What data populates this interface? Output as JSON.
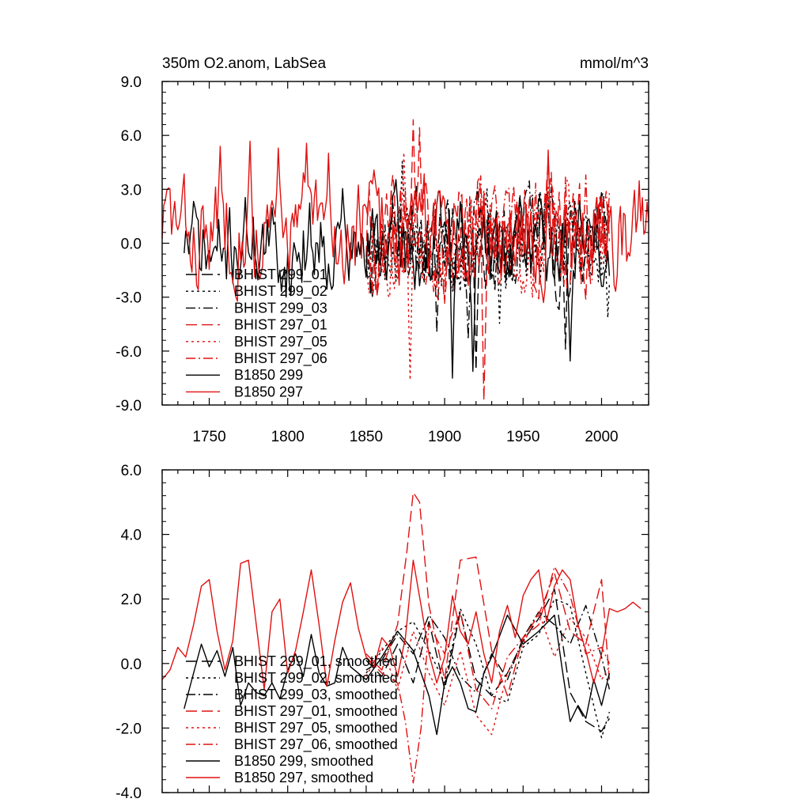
{
  "chart_data": [
    {
      "type": "line",
      "title": "350m O2.anom, LabSea",
      "units": "mmol/m^3",
      "xlim": [
        1720,
        2030
      ],
      "ylim": [
        -9,
        9
      ],
      "xticks": [
        1750,
        1800,
        1850,
        1900,
        1950,
        2000
      ],
      "xtick_labels": [
        "1750",
        "1800",
        "1850",
        "1900",
        "1950",
        "2000"
      ],
      "yticks": [
        -9,
        -6,
        -3,
        0,
        3,
        6,
        9
      ],
      "ytick_labels": [
        "-9.0",
        "-6.0",
        "-3.0",
        "0.0",
        "3.0",
        "6.0",
        "9.0"
      ],
      "legend_position": "lower-left",
      "series": [
        {
          "name": "BHIST 299_01",
          "color": "#000000",
          "dash": "longdash",
          "start": 1850,
          "end": 2005,
          "amp": 1.6,
          "seed": 11,
          "bias": 0.2,
          "spikes": [
            [
              1895,
              -4.8
            ],
            [
              1920,
              -6.9
            ],
            [
              1977,
              -5.7
            ]
          ]
        },
        {
          "name": "BHIST 299_02",
          "color": "#000000",
          "dash": "dotted",
          "start": 1850,
          "end": 2005,
          "amp": 1.5,
          "seed": 23,
          "bias": 0.0,
          "spikes": [
            [
              1873,
              3.8
            ],
            [
              1935,
              -4.5
            ],
            [
              2004,
              -4.6
            ]
          ]
        },
        {
          "name": "BHIST 299_03",
          "color": "#000000",
          "dash": "dashdot",
          "start": 1850,
          "end": 2005,
          "amp": 1.5,
          "seed": 37,
          "bias": 0.3,
          "spikes": [
            [
              1915,
              -5.5
            ],
            [
              1968,
              3.2
            ]
          ]
        },
        {
          "name": "BHIST 297_01",
          "color": "#e01010",
          "dash": "longdash",
          "start": 1850,
          "end": 2005,
          "amp": 1.8,
          "seed": 41,
          "bias": 0.5,
          "spikes": [
            [
              1880,
              6.7
            ],
            [
              1884,
              6.5
            ],
            [
              1925,
              -8.6
            ]
          ]
        },
        {
          "name": "BHIST 297_05",
          "color": "#e01010",
          "dash": "dotted",
          "start": 1850,
          "end": 2005,
          "amp": 1.7,
          "seed": 53,
          "bias": 0.2,
          "spikes": [
            [
              1878,
              -7.5
            ],
            [
              1874,
              5.6
            ]
          ]
        },
        {
          "name": "BHIST 297_06",
          "color": "#e01010",
          "dash": "dashdot",
          "start": 1850,
          "end": 2005,
          "amp": 1.7,
          "seed": 67,
          "bias": 0.6,
          "spikes": [
            [
              1977,
              4.0
            ],
            [
              1990,
              4.3
            ]
          ]
        },
        {
          "name": "B1850 299",
          "color": "#000000",
          "dash": "solid",
          "start": 1734,
          "end": 2005,
          "amp": 1.5,
          "seed": 71,
          "bias": -0.2,
          "spikes": [
            [
              1835,
              3.3
            ],
            [
              1905,
              -7.1
            ],
            [
              1918,
              -6.9
            ],
            [
              1980,
              -5.7
            ]
          ]
        },
        {
          "name": "B1850 297",
          "color": "#e01010",
          "dash": "solid",
          "start": 1720,
          "end": 2030,
          "amp": 1.7,
          "seed": 83,
          "bias": 0.7,
          "spikes": [
            [
              1757,
              5.1
            ],
            [
              1776,
              5.2
            ],
            [
              1794,
              5.1
            ],
            [
              1812,
              5.0
            ],
            [
              1826,
              4.4
            ],
            [
              1966,
              5.1
            ]
          ]
        }
      ]
    },
    {
      "type": "line",
      "title": "",
      "xlim": [
        1720,
        2030
      ],
      "ylim": [
        -4,
        6
      ],
      "xticks": [
        1750,
        1800,
        1850,
        1900,
        1950,
        2000
      ],
      "yticks": [
        -4,
        -2,
        0,
        2,
        4,
        6
      ],
      "ytick_labels": [
        "-4.0",
        "-2.0",
        "0.0",
        "2.0",
        "4.0",
        "6.0"
      ],
      "legend_position": "lower-left",
      "series": [
        {
          "name": "BHIST 299_01, smoothed",
          "color": "#000000",
          "dash": "longdash",
          "x": [
            1850,
            1860,
            1870,
            1880,
            1890,
            1900,
            1910,
            1920,
            1930,
            1940,
            1950,
            1960,
            1970,
            1980,
            1990,
            2000,
            2005
          ],
          "y": [
            0.1,
            -0.4,
            0.6,
            -0.6,
            1.3,
            -0.8,
            1.6,
            -0.5,
            -1.0,
            -0.3,
            0.7,
            1.4,
            2.3,
            -0.9,
            -1.8,
            -2.1,
            -1.7
          ]
        },
        {
          "name": "BHIST 299_02, smoothed",
          "color": "#000000",
          "dash": "dotted",
          "x": [
            1850,
            1860,
            1870,
            1880,
            1890,
            1900,
            1910,
            1920,
            1930,
            1940,
            1950,
            1960,
            1970,
            1980,
            1990,
            2000,
            2005
          ],
          "y": [
            -0.3,
            0.4,
            1.0,
            1.3,
            0.4,
            -0.6,
            1.7,
            0.6,
            -1.0,
            -1.2,
            0.5,
            0.9,
            2.0,
            1.8,
            -0.3,
            -2.3,
            -1.5
          ]
        },
        {
          "name": "BHIST 299_03, smoothed",
          "color": "#000000",
          "dash": "dashdot",
          "x": [
            1850,
            1860,
            1870,
            1880,
            1890,
            1900,
            1910,
            1920,
            1930,
            1940,
            1950,
            1960,
            1970,
            1980,
            1990,
            2000,
            2005
          ],
          "y": [
            -0.2,
            0.1,
            0.9,
            0.3,
            1.5,
            0.8,
            -0.4,
            -0.9,
            0.3,
            -0.5,
            0.8,
            1.6,
            1.2,
            0.6,
            1.8,
            0.2,
            -0.8
          ]
        },
        {
          "name": "BHIST 297_01, smoothed",
          "color": "#e01010",
          "dash": "longdash",
          "x": [
            1850,
            1860,
            1870,
            1876,
            1880,
            1884,
            1890,
            1900,
            1910,
            1920,
            1930,
            1940,
            1950,
            1960,
            1970,
            1980,
            1990,
            2000,
            2005
          ],
          "y": [
            0.3,
            -0.2,
            1.2,
            3.5,
            5.3,
            5.0,
            1.8,
            -0.5,
            3.2,
            3.3,
            0.4,
            -1.0,
            0.8,
            1.5,
            2.8,
            1.0,
            0.6,
            2.6,
            -0.5
          ]
        },
        {
          "name": "BHIST 297_05, smoothed",
          "color": "#e01010",
          "dash": "dotted",
          "x": [
            1850,
            1860,
            1870,
            1880,
            1890,
            1900,
            1910,
            1920,
            1930,
            1940,
            1950,
            1960,
            1970,
            1980,
            1990,
            2000,
            2005
          ],
          "y": [
            -0.4,
            0.5,
            -0.8,
            1.0,
            -0.3,
            -1.3,
            0.4,
            -1.6,
            -2.2,
            -0.3,
            0.6,
            1.6,
            0.2,
            1.4,
            0.8,
            -0.5,
            -0.1
          ]
        },
        {
          "name": "BHIST 297_06, smoothed",
          "color": "#e01010",
          "dash": "dashdot",
          "x": [
            1850,
            1860,
            1870,
            1875,
            1880,
            1885,
            1890,
            1900,
            1910,
            1920,
            1930,
            1940,
            1950,
            1960,
            1970,
            1980,
            1990,
            2000,
            2005
          ],
          "y": [
            0.2,
            -0.3,
            -0.6,
            -1.8,
            -3.7,
            -2.0,
            1.2,
            0.3,
            1.6,
            -0.8,
            -1.4,
            0.2,
            0.8,
            1.2,
            3.0,
            2.1,
            0.3,
            0.5,
            0.0
          ]
        },
        {
          "name": "B1850 299, smoothed",
          "color": "#000000",
          "dash": "solid",
          "x": [
            1734,
            1740,
            1745,
            1750,
            1755,
            1760,
            1765,
            1770,
            1775,
            1780,
            1785,
            1790,
            1795,
            1800,
            1805,
            1810,
            1815,
            1820,
            1825,
            1830,
            1835,
            1840,
            1850,
            1860,
            1870,
            1880,
            1890,
            1895,
            1900,
            1905,
            1910,
            1915,
            1920,
            1925,
            1930,
            1940,
            1950,
            1960,
            1970,
            1975,
            1980,
            1985,
            1990,
            1995,
            2000,
            2005
          ],
          "y": [
            -1.4,
            -0.3,
            0.6,
            -0.1,
            0.4,
            -0.4,
            0.5,
            -1.3,
            -0.6,
            -0.9,
            -1.0,
            -0.6,
            -1.1,
            -0.2,
            0.3,
            -0.4,
            0.9,
            -0.3,
            -0.7,
            -0.6,
            0.5,
            -0.1,
            -0.5,
            0.2,
            1.0,
            0.4,
            -1.0,
            -2.2,
            -0.6,
            -0.1,
            -0.6,
            -1.4,
            -1.5,
            -0.3,
            0.2,
            1.5,
            0.6,
            1.0,
            1.5,
            -0.2,
            -1.8,
            -1.3,
            -1.7,
            -0.5,
            -1.3,
            -0.3
          ]
        },
        {
          "name": "B1850 297, smoothed",
          "color": "#e01010",
          "dash": "solid",
          "x": [
            1720,
            1725,
            1730,
            1735,
            1740,
            1745,
            1750,
            1755,
            1760,
            1765,
            1770,
            1775,
            1780,
            1785,
            1790,
            1795,
            1800,
            1805,
            1810,
            1815,
            1820,
            1825,
            1830,
            1835,
            1840,
            1845,
            1850,
            1855,
            1860,
            1865,
            1870,
            1875,
            1880,
            1885,
            1890,
            1895,
            1900,
            1905,
            1910,
            1915,
            1920,
            1925,
            1930,
            1935,
            1940,
            1945,
            1950,
            1955,
            1960,
            1965,
            1970,
            1975,
            1980,
            1985,
            1990,
            1995,
            2000,
            2005,
            2010,
            2015,
            2020,
            2025
          ],
          "y": [
            -0.5,
            -0.2,
            0.5,
            0.2,
            1.2,
            2.4,
            2.6,
            1.0,
            -0.2,
            0.7,
            3.1,
            3.2,
            1.2,
            -0.8,
            1.6,
            2.0,
            -0.3,
            0.4,
            1.6,
            2.9,
            1.2,
            -0.7,
            0.7,
            1.9,
            2.5,
            1.1,
            0.2,
            -0.1,
            0.8,
            0.5,
            -0.4,
            0.8,
            3.2,
            1.8,
            0.3,
            -0.6,
            0.2,
            2.1,
            1.0,
            0.6,
            1.6,
            0.3,
            -0.6,
            1.0,
            1.8,
            0.8,
            2.1,
            2.6,
            2.9,
            1.3,
            2.4,
            2.9,
            2.6,
            1.2,
            0.4,
            -0.6,
            0.3,
            1.7,
            1.6,
            1.7,
            1.9,
            1.7
          ]
        }
      ]
    }
  ]
}
